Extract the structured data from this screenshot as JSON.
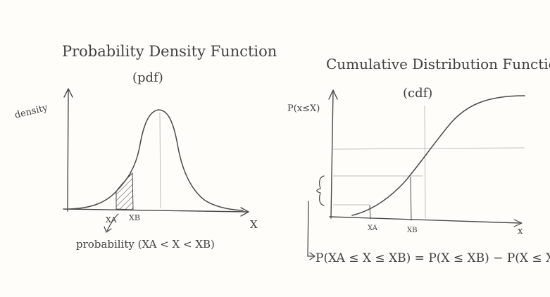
{
  "left_panel": {
    "title": "Probability Density Function",
    "subtitle": "(pdf)",
    "y_label": "density",
    "x_label": "X",
    "tick_a": "XA",
    "tick_b": "XB",
    "annotation": "probability (XA < X < XB)"
  },
  "right_panel": {
    "title": "Cumulative Distribution Function",
    "subtitle": "(cdf)",
    "y_label": "P(x≤X)",
    "x_label": "x",
    "tick_a": "XA",
    "tick_b": "XB",
    "formula": "P(XA ≤ X ≤ XB) = P(X ≤ XB) − P(X ≤ XA)"
  },
  "colors": {
    "ink": "#4a4a4a",
    "guide": "#bdbdbd",
    "paper": "#fffdf9"
  }
}
